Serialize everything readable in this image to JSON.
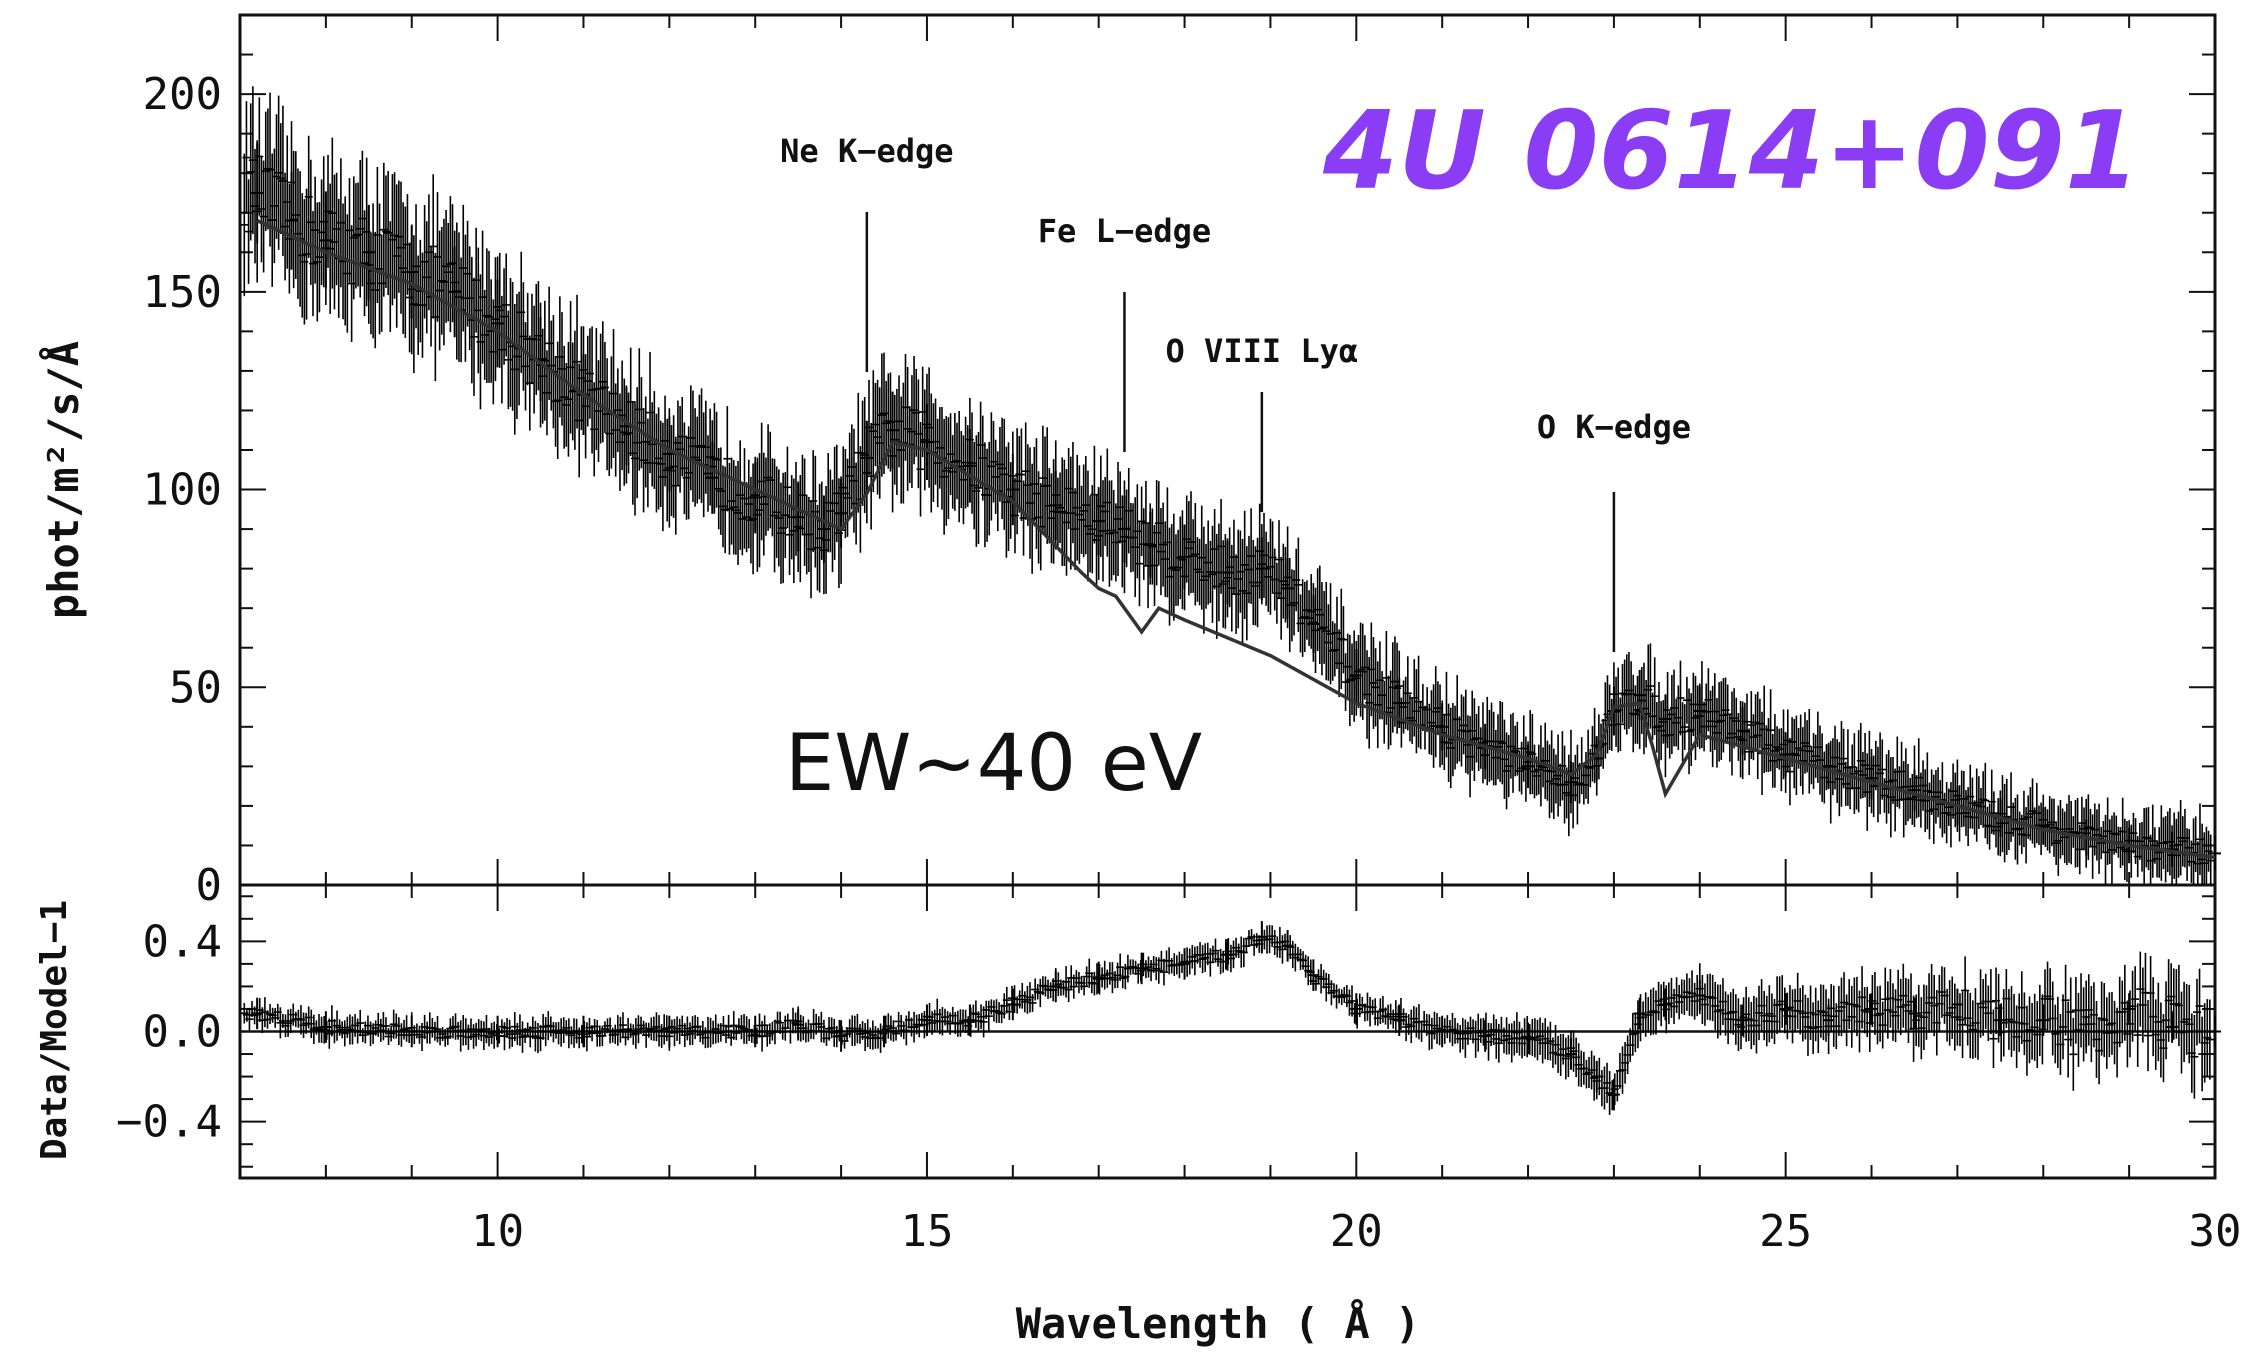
{
  "chart_data": [
    {
      "type": "scatter",
      "panel": "spectrum",
      "title": "4U 0614+091",
      "title_color": "#8a3df5",
      "xlabel": "Wavelength ( Å )",
      "ylabel": "phot/m²/s/Å",
      "xlim": [
        7,
        30
      ],
      "ylim": [
        0,
        220
      ],
      "xticks": [
        10,
        15,
        20,
        25,
        30
      ],
      "yticks": [
        0,
        50,
        100,
        150,
        200
      ],
      "xtick_labels": [
        "10",
        "15",
        "20",
        "25",
        "30"
      ],
      "ytick_labels": [
        "0",
        "50",
        "100",
        "150",
        "200"
      ],
      "annotations": [
        {
          "label": "Ne K−edge",
          "x": 14.3
        },
        {
          "label": "Fe L−edge",
          "x": 17.3
        },
        {
          "label": "O VIII Lyα",
          "x": 18.9
        },
        {
          "label": "O K−edge",
          "x": 23.0
        }
      ],
      "note": "EW~40 eV",
      "series": [
        {
          "role": "data",
          "x": [
            7.2,
            7.6,
            8.0,
            8.5,
            9.0,
            9.5,
            10.0,
            10.5,
            11.0,
            11.5,
            12.0,
            12.5,
            13.0,
            13.5,
            13.8,
            14.0,
            14.3,
            14.6,
            15.0,
            15.5,
            16.0,
            16.5,
            17.0,
            17.3,
            17.6,
            18.0,
            18.5,
            18.9,
            19.2,
            19.5,
            20.0,
            20.5,
            21.0,
            21.5,
            22.0,
            22.5,
            22.8,
            23.0,
            23.3,
            23.6,
            24.0,
            24.5,
            25.0,
            25.5,
            26.0,
            26.5,
            27.0,
            27.5,
            28.0,
            28.5,
            29.0,
            29.5,
            30.0
          ],
          "y": [
            175,
            168,
            163,
            160,
            155,
            150,
            142,
            133,
            124,
            116,
            109,
            103,
            98,
            93,
            90,
            94,
            108,
            115,
            112,
            106,
            100,
            96,
            92,
            90,
            86,
            83,
            79,
            80,
            75,
            66,
            53,
            46,
            40,
            35,
            30,
            26,
            32,
            44,
            48,
            42,
            44,
            39,
            33,
            30,
            27,
            24,
            20,
            17,
            15,
            12,
            10,
            9,
            8
          ]
        },
        {
          "role": "model",
          "x": [
            7.2,
            8.0,
            9.0,
            10.0,
            11.0,
            12.0,
            13.0,
            14.0,
            14.3,
            14.6,
            15.0,
            16.0,
            16.8,
            17.0,
            17.2,
            17.4,
            17.5,
            17.7,
            18.0,
            19.0,
            20.0,
            21.0,
            22.0,
            22.5,
            22.8,
            23.0,
            23.3,
            23.45,
            23.6,
            24.0,
            25.0,
            26.0,
            27.0,
            28.0,
            29.0,
            30.0
          ],
          "y": [
            168,
            160,
            152,
            140,
            124,
            110,
            100,
            90,
            99,
            112,
            110,
            97,
            79,
            75,
            73,
            67,
            64,
            70,
            67,
            58,
            46,
            38,
            32,
            28,
            33,
            45,
            46,
            35,
            23,
            38,
            32,
            26,
            20,
            14,
            10,
            7
          ]
        }
      ]
    },
    {
      "type": "scatter",
      "panel": "residuals",
      "ylabel": "Data/Model−1",
      "xlim": [
        7,
        30
      ],
      "ylim": [
        -0.65,
        0.65
      ],
      "yticks": [
        -0.4,
        0.0,
        0.4
      ],
      "ytick_labels": [
        "−0.4",
        "0.0",
        "0.4"
      ],
      "reference_line": 0.0,
      "series": [
        {
          "role": "residuals",
          "x": [
            7.2,
            8.0,
            9.0,
            10.0,
            11.0,
            12.0,
            13.0,
            13.5,
            14.0,
            14.5,
            15.0,
            15.5,
            16.0,
            16.5,
            17.0,
            17.5,
            18.0,
            18.5,
            18.9,
            19.2,
            19.5,
            20.0,
            20.5,
            21.0,
            21.5,
            22.0,
            22.5,
            22.8,
            23.0,
            23.3,
            23.6,
            24.0,
            24.5,
            25.0,
            25.5,
            26.0,
            26.5,
            27.0,
            27.5,
            28.0,
            28.5,
            29.0,
            29.5,
            30.0
          ],
          "y": [
            0.08,
            0.02,
            0.0,
            0.0,
            0.0,
            0.0,
            0.0,
            0.03,
            -0.02,
            0.0,
            0.05,
            0.05,
            0.12,
            0.2,
            0.24,
            0.28,
            0.3,
            0.34,
            0.42,
            0.38,
            0.25,
            0.1,
            0.05,
            0.0,
            -0.02,
            -0.03,
            -0.1,
            -0.2,
            -0.28,
            0.08,
            0.12,
            0.16,
            0.05,
            0.1,
            0.05,
            0.1,
            0.08,
            0.12,
            0.05,
            0.05,
            0.0,
            0.1,
            0.02,
            0.0
          ]
        }
      ]
    }
  ]
}
